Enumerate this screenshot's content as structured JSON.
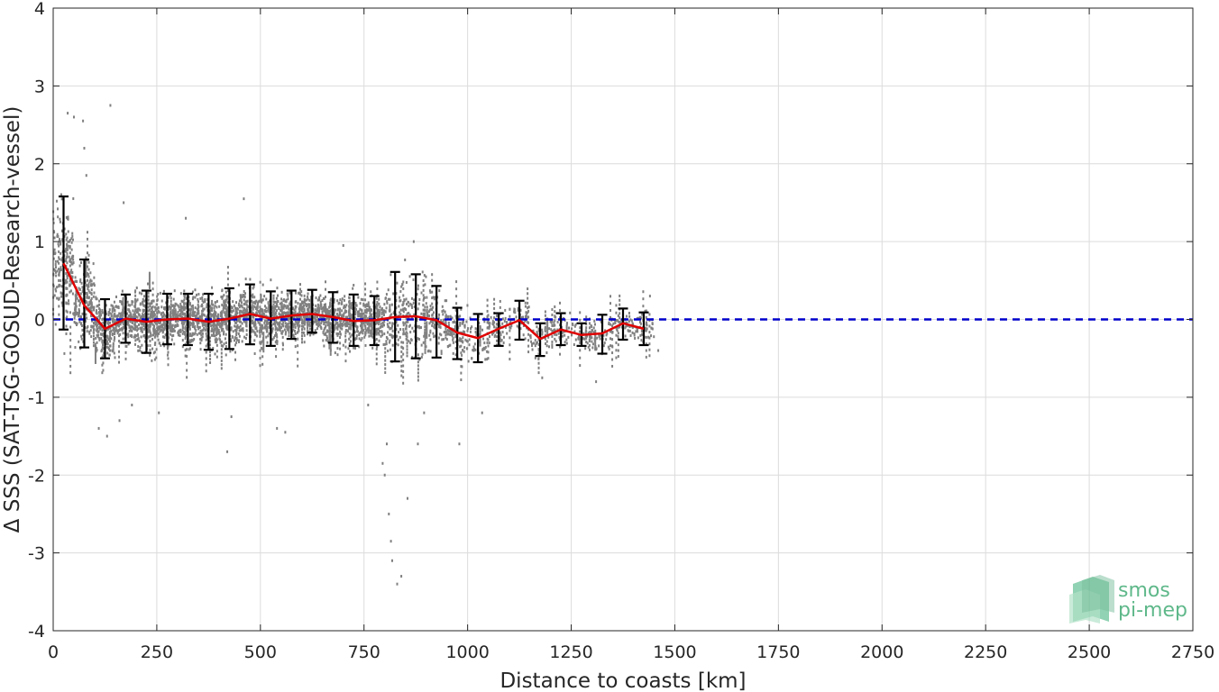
{
  "chart_data": {
    "type": "scatter",
    "xlabel": "Distance to coasts [km]",
    "ylabel": "Δ SSS (SAT-TSG-GOSUD-Research-vessel)",
    "xlim": [
      0,
      2750
    ],
    "ylim": [
      -4,
      4
    ],
    "xticks": [
      0,
      250,
      500,
      750,
      1000,
      1250,
      1500,
      1750,
      2000,
      2250,
      2500,
      2750
    ],
    "yticks": [
      -4,
      -3,
      -2,
      -1,
      0,
      1,
      2,
      3,
      4
    ],
    "grid": true,
    "legend": "none",
    "reference_line": {
      "y": 0,
      "color": "#0000cc",
      "style": "dashed"
    },
    "scatter_color": "#808080",
    "mean_color": "#e00000",
    "errorbar_color": "#000000",
    "binned_stats": [
      {
        "x": 25,
        "mean": 0.72,
        "low": -0.13,
        "high": 1.58
      },
      {
        "x": 75,
        "mean": 0.18,
        "low": -0.36,
        "high": 0.77
      },
      {
        "x": 125,
        "mean": -0.12,
        "low": -0.5,
        "high": 0.26
      },
      {
        "x": 175,
        "mean": 0.01,
        "low": -0.3,
        "high": 0.32
      },
      {
        "x": 225,
        "mean": -0.03,
        "low": -0.43,
        "high": 0.37
      },
      {
        "x": 275,
        "mean": 0.0,
        "low": -0.32,
        "high": 0.33
      },
      {
        "x": 325,
        "mean": 0.01,
        "low": -0.33,
        "high": 0.33
      },
      {
        "x": 375,
        "mean": -0.03,
        "low": -0.39,
        "high": 0.33
      },
      {
        "x": 425,
        "mean": 0.01,
        "low": -0.38,
        "high": 0.4
      },
      {
        "x": 475,
        "mean": 0.07,
        "low": -0.32,
        "high": 0.45
      },
      {
        "x": 525,
        "mean": 0.01,
        "low": -0.34,
        "high": 0.36
      },
      {
        "x": 575,
        "mean": 0.05,
        "low": -0.25,
        "high": 0.37
      },
      {
        "x": 625,
        "mean": 0.07,
        "low": -0.17,
        "high": 0.38
      },
      {
        "x": 675,
        "mean": 0.03,
        "low": -0.3,
        "high": 0.35
      },
      {
        "x": 725,
        "mean": -0.02,
        "low": -0.34,
        "high": 0.32
      },
      {
        "x": 775,
        "mean": -0.01,
        "low": -0.33,
        "high": 0.3
      },
      {
        "x": 825,
        "mean": 0.03,
        "low": -0.54,
        "high": 0.61
      },
      {
        "x": 875,
        "mean": 0.04,
        "low": -0.5,
        "high": 0.58
      },
      {
        "x": 925,
        "mean": -0.01,
        "low": -0.49,
        "high": 0.43
      },
      {
        "x": 975,
        "mean": -0.17,
        "low": -0.51,
        "high": 0.15
      },
      {
        "x": 1025,
        "mean": -0.24,
        "low": -0.55,
        "high": 0.07
      },
      {
        "x": 1075,
        "mean": -0.12,
        "low": -0.34,
        "high": 0.08
      },
      {
        "x": 1125,
        "mean": -0.01,
        "low": -0.26,
        "high": 0.24
      },
      {
        "x": 1175,
        "mean": -0.25,
        "low": -0.47,
        "high": -0.05
      },
      {
        "x": 1225,
        "mean": -0.13,
        "low": -0.33,
        "high": 0.08
      },
      {
        "x": 1275,
        "mean": -0.2,
        "low": -0.34,
        "high": -0.05
      },
      {
        "x": 1325,
        "mean": -0.18,
        "low": -0.44,
        "high": 0.06
      },
      {
        "x": 1375,
        "mean": -0.05,
        "low": -0.26,
        "high": 0.14
      },
      {
        "x": 1425,
        "mean": -0.12,
        "low": -0.33,
        "high": 0.09
      }
    ]
  },
  "logo": {
    "line1": "smos",
    "line2": "pi-mep",
    "color": "#5fb88a"
  }
}
